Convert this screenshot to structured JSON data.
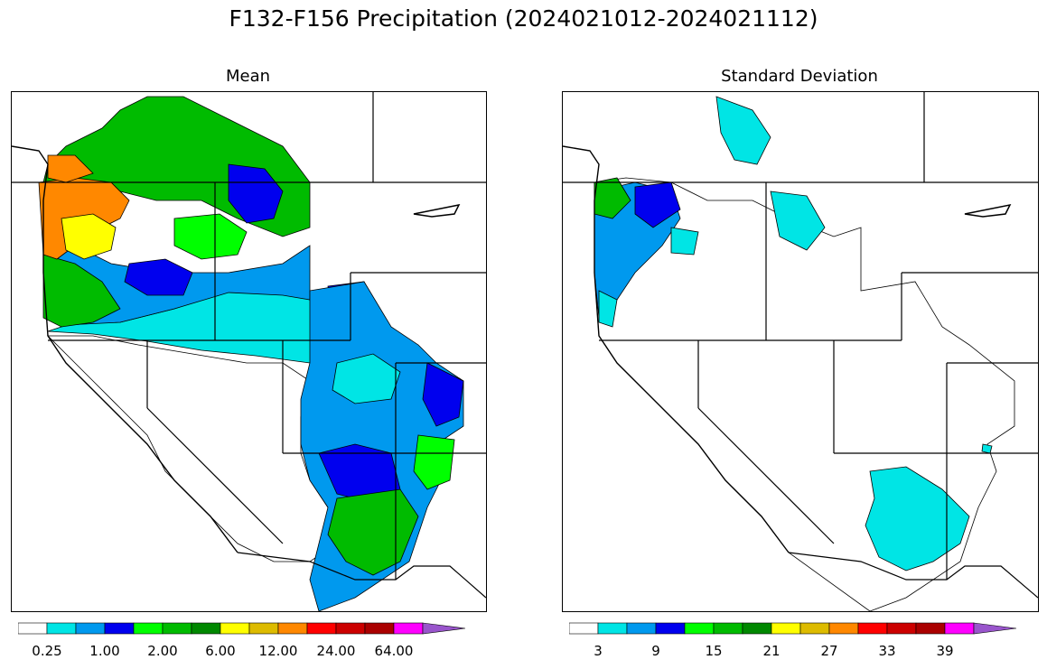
{
  "suptitle": "F132-F156 Precipitation (2024021012-2024021112)",
  "panels": [
    {
      "title": "Mean",
      "colorbar": {
        "colors": [
          "#ffffff",
          "#00e5e5",
          "#0099ee",
          "#0000ee",
          "#00ff00",
          "#00bb00",
          "#008800",
          "#ffff00",
          "#ddbb00",
          "#ff8800",
          "#ff0000",
          "#cc0000",
          "#aa0000",
          "#ff00ff",
          "#9955cc"
        ],
        "ticks": [
          "0.25",
          "1.00",
          "2.00",
          "6.00",
          "12.00",
          "24.00",
          "64.00"
        ]
      }
    },
    {
      "title": "Standard Deviation",
      "colorbar": {
        "colors": [
          "#ffffff",
          "#00e5e5",
          "#0099ee",
          "#0000ee",
          "#00ff00",
          "#00bb00",
          "#008800",
          "#ffff00",
          "#ddbb00",
          "#ff8800",
          "#ff0000",
          "#cc0000",
          "#aa0000",
          "#ff00ff",
          "#9955cc"
        ],
        "ticks": [
          "3",
          "9",
          "15",
          "21",
          "27",
          "33",
          "39"
        ]
      }
    }
  ]
}
